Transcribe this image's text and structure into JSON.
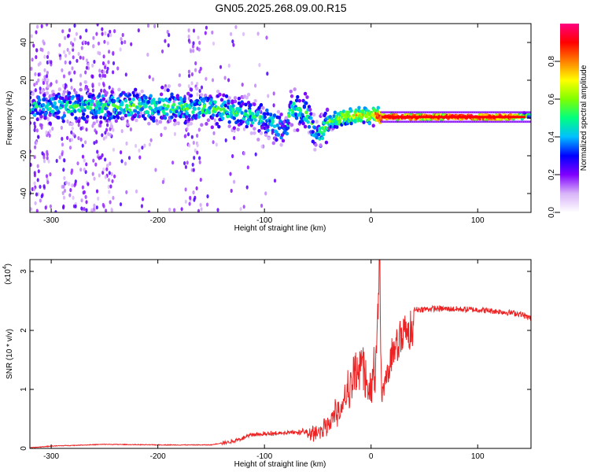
{
  "title": "GN05.2025.268.09.00.R15",
  "chart_data": [
    {
      "type": "heatmap",
      "title": "GN05.2025.268.09.00.R15",
      "xlabel": "Height of straight line (km)",
      "ylabel": "Frequency (Hz)",
      "xlim": [
        -320,
        150
      ],
      "ylim": [
        -50,
        50
      ],
      "xticks": [
        -300,
        -200,
        -100,
        0,
        100
      ],
      "yticks": [
        -40,
        -20,
        0,
        20,
        40
      ],
      "colorbar": {
        "label": "Normalized spectral amplitude",
        "range": [
          0,
          1
        ],
        "ticks": [
          "0.0",
          "0.2",
          "0.4",
          "0.6",
          "0.8"
        ],
        "colors": [
          "#ffffff",
          "#d8b4f8",
          "#8000ff",
          "#0000ff",
          "#00bfff",
          "#00ff80",
          "#80ff00",
          "#ffff00",
          "#ff8000",
          "#ff0000",
          "#ff0080"
        ]
      },
      "ridge": [
        {
          "x": -320,
          "f": 6,
          "amp": 0.45
        },
        {
          "x": -250,
          "f": 6,
          "amp": 0.5
        },
        {
          "x": -200,
          "f": 6,
          "amp": 0.5
        },
        {
          "x": -150,
          "f": 5,
          "amp": 0.5
        },
        {
          "x": -120,
          "f": 3,
          "amp": 0.5
        },
        {
          "x": -95,
          "f": -2,
          "amp": 0.45
        },
        {
          "x": -80,
          "f": -8,
          "amp": 0.4
        },
        {
          "x": -75,
          "f": 6,
          "amp": 0.5
        },
        {
          "x": -60,
          "f": 2,
          "amp": 0.5
        },
        {
          "x": -50,
          "f": -10,
          "amp": 0.45
        },
        {
          "x": -40,
          "f": -2,
          "amp": 0.6
        },
        {
          "x": -20,
          "f": 1,
          "amp": 0.7
        },
        {
          "x": 0,
          "f": 2,
          "amp": 0.7
        },
        {
          "x": 10,
          "f": 0.5,
          "amp": 0.95
        },
        {
          "x": 130,
          "f": 0.5,
          "amp": 0.95
        },
        {
          "x": 150,
          "f": 1.5,
          "amp": 0.5
        }
      ]
    },
    {
      "type": "line",
      "xlabel": "Height of straight line (km)",
      "ylabel": "SNR (10 * v/v)",
      "y_multiplier": "(x10",
      "y_multiplier_exp": "4",
      "y_multiplier_close": ")",
      "xlim": [
        -320,
        150
      ],
      "ylim": [
        0,
        3.2
      ],
      "xticks": [
        -300,
        -200,
        -100,
        0,
        100
      ],
      "yticks": [
        0,
        1,
        2,
        3
      ],
      "series": [
        {
          "name": "SNR",
          "color": "#ee2222",
          "x": [
            -320,
            -300,
            -250,
            -200,
            -150,
            -130,
            -110,
            -90,
            -70,
            -50,
            -40,
            -30,
            -20,
            -10,
            0,
            5,
            8,
            10,
            20,
            30,
            40,
            60,
            80,
            100,
            120,
            140,
            150
          ],
          "y": [
            0.01,
            0.04,
            0.07,
            0.06,
            0.06,
            0.13,
            0.25,
            0.28,
            0.3,
            0.32,
            0.55,
            0.9,
            1.4,
            1.8,
            1.4,
            2.0,
            3.2,
            1.0,
            1.9,
            2.25,
            2.35,
            2.37,
            2.36,
            2.35,
            2.32,
            2.28,
            2.2
          ]
        }
      ]
    }
  ]
}
